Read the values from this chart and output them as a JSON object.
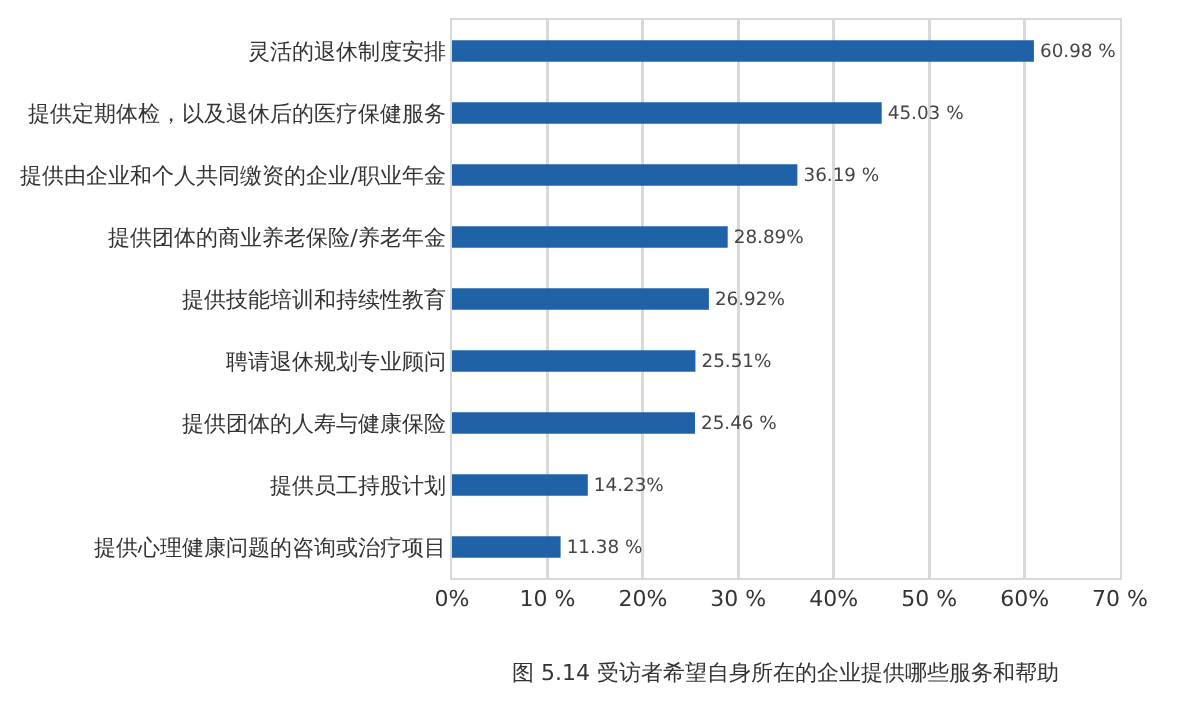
{
  "chart_data": {
    "type": "bar",
    "orientation": "horizontal",
    "categories": [
      "灵活的退休制度安排",
      "提供定期体检，以及退休后的医疗保健服务",
      "提供由企业和个人共同缴资的企业/职业年金",
      "提供团体的商业养老保险/养老年金",
      "提供技能培训和持续性教育",
      "聘请退休规划专业顾问",
      "提供团体的人寿与健康保险",
      "提供员工持股计划",
      "提供心理健康问题的咨询或治疗项目"
    ],
    "values": [
      60.98,
      45.03,
      36.19,
      28.89,
      26.92,
      25.51,
      25.46,
      14.23,
      11.38
    ],
    "value_labels": [
      "60.98 %",
      "45.03 %",
      "36.19 %",
      "28.89%",
      "26.92%",
      "25.51%",
      "25.46 %",
      "14.23%",
      "11.38 %"
    ],
    "color": "#1f62a8",
    "xlim": [
      0,
      70
    ],
    "xticks": [
      {
        "value": 0,
        "label": "0%"
      },
      {
        "value": 10,
        "label": "10 %"
      },
      {
        "value": 20,
        "label": "20%"
      },
      {
        "value": 30,
        "label": "30 %"
      },
      {
        "value": 40,
        "label": "40%"
      },
      {
        "value": 50,
        "label": "50 %"
      },
      {
        "value": 60,
        "label": "60%"
      },
      {
        "value": 70,
        "label": "70 %"
      }
    ],
    "grid": "x",
    "annotations": [
      "图 5.14 受访者希望自身所在的企业提供哪些服务和帮助"
    ]
  }
}
